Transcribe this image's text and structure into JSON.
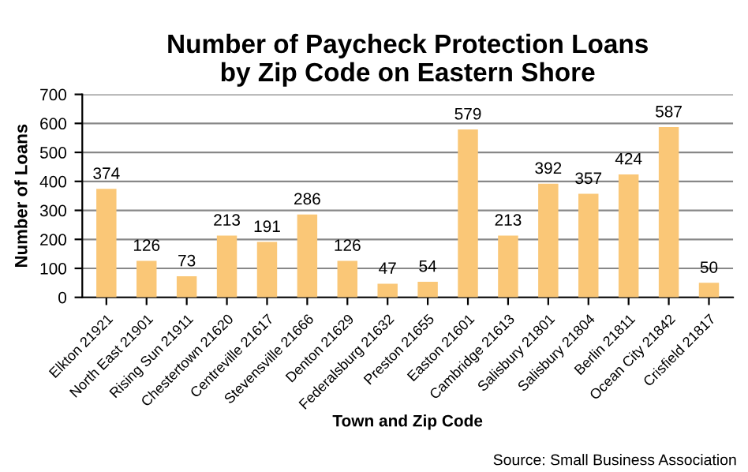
{
  "chart_data": {
    "type": "bar",
    "title": "Number of Paycheck Protection Loans\nby Zip Code on Eastern Shore",
    "xlabel": "Town and Zip Code",
    "ylabel": "Number of Loans",
    "categories": [
      "Elkton 21921",
      "North East 21901",
      "Rising Sun 21911",
      "Chestertown 21620",
      "Centreville 21617",
      "Stevensville 21666",
      "Denton 21629",
      "Federalsburg 21632",
      "Preston 21655",
      "Easton 21601",
      "Cambridge 21613",
      "Salisbury 21801",
      "Salisbury 21804",
      "Berlin 21811",
      "Ocean City 21842",
      "Crisfield 21817"
    ],
    "values": [
      374,
      126,
      73,
      213,
      191,
      286,
      126,
      47,
      54,
      579,
      213,
      392,
      357,
      424,
      587,
      50
    ],
    "color": "#fac777",
    "ylim": [
      0,
      700
    ],
    "yticks": [
      0,
      100,
      200,
      300,
      400,
      500,
      600,
      700
    ],
    "grid": "y",
    "data_labels": true,
    "legend": false,
    "annotations": [
      "Source: Small Business Association"
    ]
  }
}
